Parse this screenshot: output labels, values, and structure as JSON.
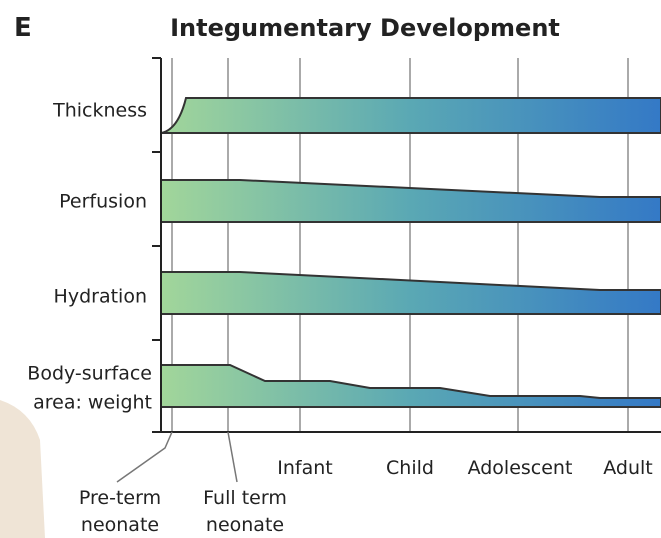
{
  "panel_label": "E",
  "title": "Integumentary Development",
  "rows": [
    {
      "label": [
        "Thickness"
      ]
    },
    {
      "label": [
        "Perfusion"
      ]
    },
    {
      "label": [
        "Hydration"
      ]
    },
    {
      "label": [
        "Body-surface",
        "area: weight"
      ]
    }
  ],
  "stages": {
    "preterm": [
      "Pre-term",
      "neonate"
    ],
    "fullterm": [
      "Full term",
      "neonate"
    ],
    "infant": "Infant",
    "child": "Child",
    "adolescent": "Adolescent",
    "adult": "Adult"
  }
}
